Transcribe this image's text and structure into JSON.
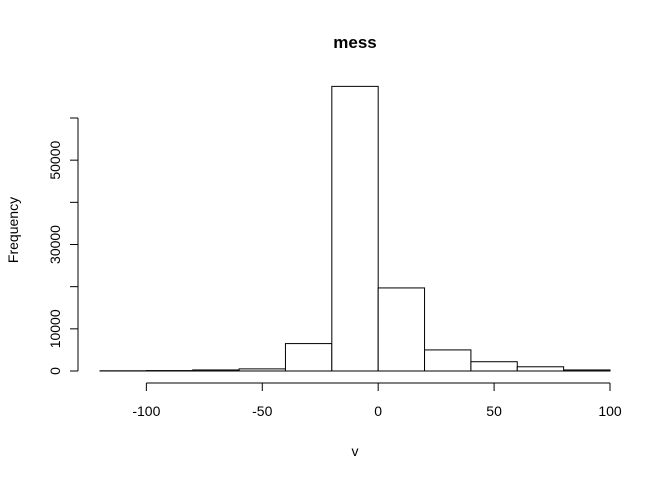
{
  "chart_data": {
    "type": "bar",
    "title": "mess",
    "xlabel": "v",
    "ylabel": "Frequency",
    "bin_edges": [
      -120,
      -100,
      -80,
      -60,
      -40,
      -20,
      0,
      20,
      40,
      60,
      80,
      100
    ],
    "values": [
      50,
      100,
      250,
      500,
      6500,
      67500,
      19700,
      5000,
      2200,
      1000,
      250
    ],
    "xlim": [
      -120,
      100
    ],
    "ylim": [
      0,
      60000
    ],
    "x_ticks": [
      -100,
      -50,
      0,
      50,
      100
    ],
    "y_ticks": [
      0,
      10000,
      30000,
      50000
    ],
    "grid": false,
    "bar_fill": "#ffffff",
    "bar_stroke": "#000000"
  }
}
